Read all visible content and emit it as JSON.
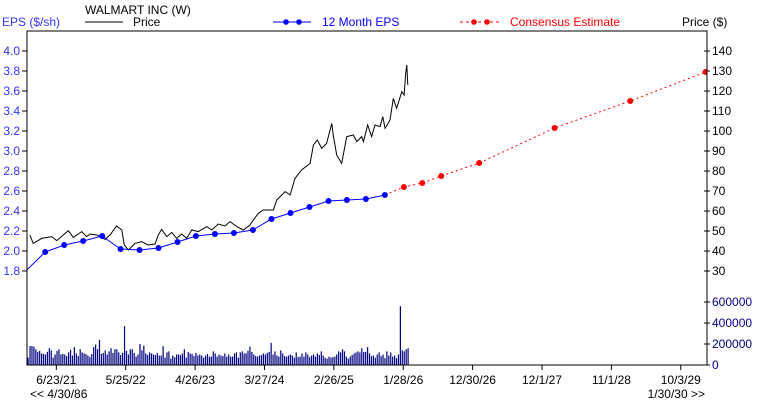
{
  "chart_data": {
    "type": "line",
    "title": "WALMART INC (W)",
    "left_axis_label": "EPS ($/sh)",
    "right_axis_label": "Price ($)",
    "legend": {
      "price": "Price",
      "eps": "12 Month EPS",
      "consensus": "Consensus Estimate"
    },
    "colors": {
      "price": "#000000",
      "eps": "#0000ff",
      "eps_axis": "#3333ff",
      "consensus": "#ff0000",
      "volume": "#000080"
    },
    "x_range": [
      "2/1/21",
      "2/7/30"
    ],
    "x_ticks": [
      "6/23/21",
      "5/25/22",
      "4/26/23",
      "3/27/24",
      "2/26/25",
      "1/28/26",
      "12/30/26",
      "12/1/27",
      "11/1/28",
      "10/3/29"
    ],
    "range_start_label": "<< 4/30/86",
    "range_end_label": "1/30/30 >>",
    "eps_ticks": [
      "4.0",
      "3.8",
      "3.6",
      "3.4",
      "3.2",
      "3.0",
      "2.8",
      "2.6",
      "2.4",
      "2.2",
      "2.0",
      "1.8"
    ],
    "price_ticks": [
      "140",
      "130",
      "120",
      "110",
      "100",
      "90",
      "80",
      "70",
      "60",
      "50",
      "40",
      "30"
    ],
    "volume_ticks": [
      "600000",
      "400000",
      "200000",
      "0"
    ],
    "eps_series": [
      [
        "1/31/21",
        1.81
      ],
      [
        "4/30/21",
        1.99
      ],
      [
        "7/31/21",
        2.06
      ],
      [
        "10/31/21",
        2.1
      ],
      [
        "1/31/22",
        2.15
      ],
      [
        "4/30/22",
        2.02
      ],
      [
        "7/31/22",
        2.01
      ],
      [
        "10/31/22",
        2.03
      ],
      [
        "1/31/23",
        2.09
      ],
      [
        "4/30/23",
        2.15
      ],
      [
        "7/31/23",
        2.17
      ],
      [
        "10/31/23",
        2.18
      ],
      [
        "1/31/24",
        2.21
      ],
      [
        "4/30/24",
        2.32
      ],
      [
        "7/31/24",
        2.38
      ],
      [
        "10/31/24",
        2.44
      ],
      [
        "1/31/25",
        2.5
      ],
      [
        "4/30/25",
        2.51
      ],
      [
        "7/31/25",
        2.52
      ],
      [
        "10/31/25",
        2.56
      ]
    ],
    "consensus_series": [
      [
        "1/31/26",
        2.64
      ],
      [
        "4/30/26",
        2.68
      ],
      [
        "7/31/26",
        2.75
      ],
      [
        "1/31/27",
        2.88
      ],
      [
        "1/31/28",
        3.23
      ],
      [
        "1/31/29",
        3.5
      ],
      [
        "1/31/30",
        3.79
      ]
    ],
    "price_series": [
      [
        "2/15/21",
        48
      ],
      [
        "3/3/21",
        43.8
      ],
      [
        "4/13/21",
        46.3
      ],
      [
        "6/1/21",
        47.2
      ],
      [
        "6/25/21",
        45.2
      ],
      [
        "8/20/21",
        50.2
      ],
      [
        "9/13/21",
        46.8
      ],
      [
        "10/24/21",
        49.7
      ],
      [
        "11/17/21",
        47.2
      ],
      [
        "12/3/21",
        48.5
      ],
      [
        "1/5/22",
        48
      ],
      [
        "2/14/22",
        45.8
      ],
      [
        "3/10/22",
        48
      ],
      [
        "4/11/22",
        52.5
      ],
      [
        "5/6/22",
        50.5
      ],
      [
        "5/18/22",
        43
      ],
      [
        "6/7/22",
        40.5
      ],
      [
        "7/9/22",
        43.8
      ],
      [
        "8/10/22",
        44.7
      ],
      [
        "9/11/22",
        43
      ],
      [
        "10/14/22",
        43.5
      ],
      [
        "10/30/22",
        48
      ],
      [
        "11/15/22",
        50.8
      ],
      [
        "12/10/22",
        47.2
      ],
      [
        "1/3/23",
        49.3
      ],
      [
        "1/27/23",
        46.3
      ],
      [
        "2/20/23",
        48.5
      ],
      [
        "3/16/23",
        46.3
      ],
      [
        "4/10/23",
        50.5
      ],
      [
        "5/12/23",
        49.7
      ],
      [
        "6/21/23",
        52.2
      ],
      [
        "7/16/23",
        50.5
      ],
      [
        "8/16/23",
        53.5
      ],
      [
        "9/18/23",
        52.5
      ],
      [
        "10/12/23",
        54.7
      ],
      [
        "11/14/23",
        52.2
      ],
      [
        "12/16/23",
        50.5
      ],
      [
        "1/17/24",
        53
      ],
      [
        "2/2/24",
        55.5
      ],
      [
        "2/26/24",
        58.8
      ],
      [
        "3/21/24",
        60.5
      ],
      [
        "5/9/24",
        60.5
      ],
      [
        "5/25/24",
        65.5
      ],
      [
        "7/5/24",
        69.7
      ],
      [
        "7/29/24",
        68
      ],
      [
        "8/22/24",
        76.3
      ],
      [
        "9/23/24",
        80.5
      ],
      [
        "11/3/24",
        83.8
      ],
      [
        "11/19/24",
        93
      ],
      [
        "12/8/24",
        95.5
      ],
      [
        "12/29/24",
        91.3
      ],
      [
        "1/22/25",
        93.8
      ],
      [
        "2/16/25",
        103.8
      ],
      [
        "2/23/25",
        98
      ],
      [
        "3/12/25",
        88
      ],
      [
        "4/5/25",
        83.8
      ],
      [
        "4/29/25",
        97.2
      ],
      [
        "5/31/25",
        98
      ],
      [
        "6/17/25",
        94.7
      ],
      [
        "7/11/25",
        97.2
      ],
      [
        "7/19/25",
        94.7
      ],
      [
        "8/9/25",
        103
      ],
      [
        "8/28/25",
        97.2
      ],
      [
        "9/13/25",
        103
      ],
      [
        "10/8/25",
        102.2
      ],
      [
        "10/21/25",
        107.2
      ],
      [
        "11/1/25",
        101.3
      ],
      [
        "11/25/25",
        105.5
      ],
      [
        "12/11/25",
        116.3
      ],
      [
        "12/27/25",
        111.3
      ],
      [
        "1/21/26",
        119.7
      ],
      [
        "2/1/26",
        118
      ],
      [
        "2/9/26",
        128.8
      ],
      [
        "2/14/26",
        133
      ],
      [
        "2/19/26",
        123
      ]
    ],
    "volume": [
      70000,
      180000,
      180000,
      175000,
      150000,
      125000,
      135000,
      110000,
      105000,
      100000,
      125000,
      160000,
      140000,
      70000,
      100000,
      135000,
      150000,
      100000,
      105000,
      100000,
      85000,
      120000,
      145000,
      90000,
      170000,
      110000,
      85000,
      150000,
      120000,
      110000,
      105000,
      90000,
      75000,
      105000,
      170000,
      195000,
      150000,
      240000,
      105000,
      115000,
      140000,
      100000,
      130000,
      160000,
      115000,
      150000,
      150000,
      120000,
      95000,
      115000,
      370000,
      135000,
      100000,
      150000,
      150000,
      115000,
      80000,
      100000,
      200000,
      140000,
      185000,
      110000,
      95000,
      120000,
      110000,
      100000,
      95000,
      115000,
      90000,
      90000,
      180000,
      70000,
      120000,
      130000,
      60000,
      90000,
      75000,
      100000,
      100000,
      95000,
      110000,
      150000,
      70000,
      125000,
      110000,
      105000,
      85000,
      115000,
      90000,
      100000,
      90000,
      70000,
      90000,
      105000,
      80000,
      80000,
      130000,
      110000,
      80000,
      100000,
      90000,
      85000,
      110000,
      80000,
      100000,
      80000,
      80000,
      110000,
      120000,
      70000,
      120000,
      130000,
      110000,
      110000,
      135000,
      175000,
      125000,
      100000,
      85000,
      80000,
      90000,
      95000,
      110000,
      100000,
      115000,
      125000,
      210000,
      100000,
      130000,
      90000,
      80000,
      140000,
      110000,
      85000,
      80000,
      90000,
      100000,
      90000,
      70000,
      120000,
      75000,
      80000,
      110000,
      80000,
      120000,
      100000,
      75000,
      90000,
      100000,
      80000,
      110000,
      95000,
      130000,
      90000,
      70000,
      60000,
      80000,
      70000,
      75000,
      80000,
      100000,
      130000,
      120000,
      150000,
      130000,
      80000,
      60000,
      80000,
      95000,
      110000,
      120000,
      130000,
      120000,
      160000,
      125000,
      125000,
      170000,
      110000,
      85000,
      90000,
      70000,
      100000,
      120000,
      85000,
      100000,
      65000,
      130000,
      90000,
      120000,
      80000,
      90000,
      65000,
      100000,
      560000,
      140000,
      130000,
      150000,
      160000
    ]
  }
}
